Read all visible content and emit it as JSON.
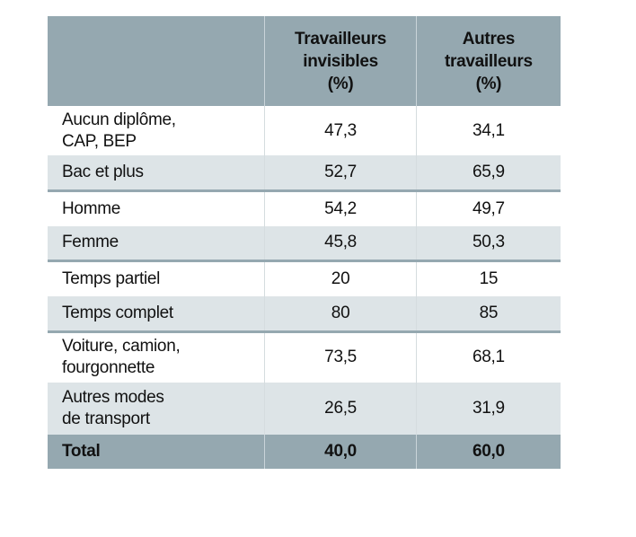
{
  "table": {
    "headers": [
      "",
      "Travailleurs invisibles (%)",
      "Autres travailleurs (%)"
    ],
    "header_lines": [
      [
        "Travailleurs",
        "invisibles",
        "(%)"
      ],
      [
        "Autres",
        "travailleurs",
        "(%)"
      ]
    ],
    "rows": [
      {
        "label": [
          "Aucun diplôme,",
          "CAP, BEP"
        ],
        "invisibles": "47,3",
        "autres": "34,1"
      },
      {
        "label": [
          "Bac et plus"
        ],
        "invisibles": "52,7",
        "autres": "65,9"
      },
      {
        "label": [
          "Homme"
        ],
        "invisibles": "54,2",
        "autres": "49,7"
      },
      {
        "label": [
          "Femme"
        ],
        "invisibles": "45,8",
        "autres": "50,3"
      },
      {
        "label": [
          "Temps partiel"
        ],
        "invisibles": "20",
        "autres": "15"
      },
      {
        "label": [
          "Temps complet"
        ],
        "invisibles": "80",
        "autres": "85"
      },
      {
        "label": [
          "Voiture, camion,",
          "fourgonnette"
        ],
        "invisibles": "73,5",
        "autres": "68,1"
      },
      {
        "label": [
          "Autres modes",
          "de transport"
        ],
        "invisibles": "26,5",
        "autres": "31,9"
      }
    ],
    "total": {
      "label": "Total",
      "invisibles": "40,0",
      "autres": "60,0"
    },
    "colors": {
      "header": "#95a8b0",
      "alt_row": "#dde4e7"
    }
  }
}
